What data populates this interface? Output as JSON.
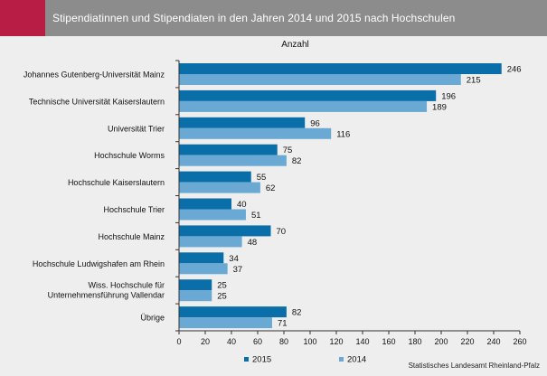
{
  "header": {
    "title": "Stipendiatinnen und Stipendiaten in den Jahren 2014 und 2015 nach Hochschulen"
  },
  "colors": {
    "accent": "#b81e45",
    "header_bar": "#8c8c8c",
    "background": "#eeeeee",
    "series_2015": "#0a6fa8",
    "series_2014": "#6aa9d3"
  },
  "source": "Statistisches Landesamt Rheinland-Pfalz",
  "chart_data": {
    "type": "bar",
    "orientation": "horizontal",
    "title": "",
    "axis_caption": "Anzahl",
    "xlim": [
      0,
      260
    ],
    "xticks": [
      0,
      20,
      40,
      60,
      80,
      100,
      120,
      140,
      160,
      180,
      200,
      220,
      240,
      260
    ],
    "grid": false,
    "legend_position": "bottom",
    "categories": [
      [
        "Johannes Gutenberg-Universität Mainz"
      ],
      [
        "Technische Universität Kaiserslautern"
      ],
      [
        "Universität Trier"
      ],
      [
        "Hochschule Worms"
      ],
      [
        "Hochschule Kaiserslautern"
      ],
      [
        "Hochschule Trier"
      ],
      [
        "Hochschule Mainz"
      ],
      [
        "Hochschule Ludwigshafen am Rhein"
      ],
      [
        "Wiss. Hochschule für",
        "Unternehmensführung Vallendar"
      ],
      [
        "Übrige"
      ]
    ],
    "series": [
      {
        "name": "2015",
        "values": [
          246,
          196,
          96,
          75,
          55,
          40,
          70,
          34,
          25,
          82
        ]
      },
      {
        "name": "2014",
        "values": [
          215,
          189,
          116,
          82,
          62,
          51,
          48,
          37,
          25,
          71
        ]
      }
    ]
  }
}
